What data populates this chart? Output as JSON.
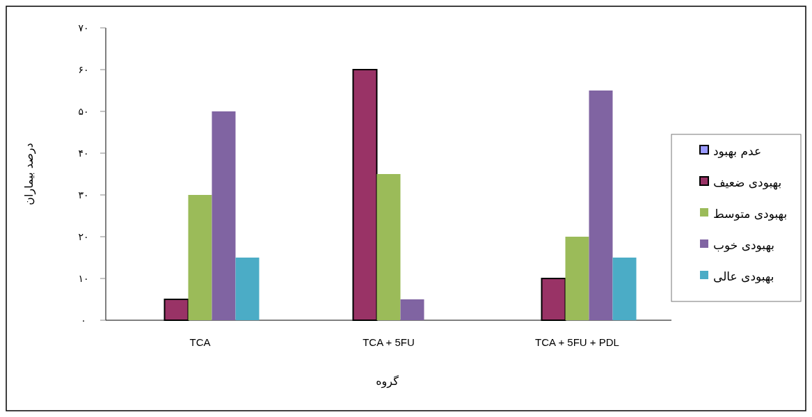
{
  "chart_data": {
    "type": "bar",
    "xlabel": "گروه",
    "ylabel": "درصد بیماران",
    "categories": [
      "TCA",
      "TCA + 5FU",
      "TCA + 5FU + PDL"
    ],
    "series": [
      {
        "name": "عدم بهبود",
        "color": "#9999ff",
        "values": [
          0,
          0,
          0
        ]
      },
      {
        "name": "بهبودی ضعیف",
        "color": "#993366",
        "values": [
          5,
          60,
          10
        ]
      },
      {
        "name": "بهبودی متوسط",
        "color": "#9bbb59",
        "values": [
          30,
          35,
          20
        ]
      },
      {
        "name": "بهبودی خوب",
        "color": "#8064a2",
        "values": [
          50,
          5,
          55
        ]
      },
      {
        "name": "بهبودی عالی",
        "color": "#4bacc6",
        "values": [
          15,
          0,
          15
        ]
      }
    ],
    "ylim": [
      0,
      70
    ],
    "yticks": [
      {
        "value": 0,
        "label": "۰"
      },
      {
        "value": 10,
        "label": "۱۰"
      },
      {
        "value": 20,
        "label": "۲۰"
      },
      {
        "value": 30,
        "label": "۳۰"
      },
      {
        "value": 40,
        "label": "۴۰"
      },
      {
        "value": 50,
        "label": "۵۰"
      },
      {
        "value": 60,
        "label": "۶۰"
      },
      {
        "value": 70,
        "label": "۷۰"
      }
    ],
    "grid": false,
    "legend": "right"
  }
}
